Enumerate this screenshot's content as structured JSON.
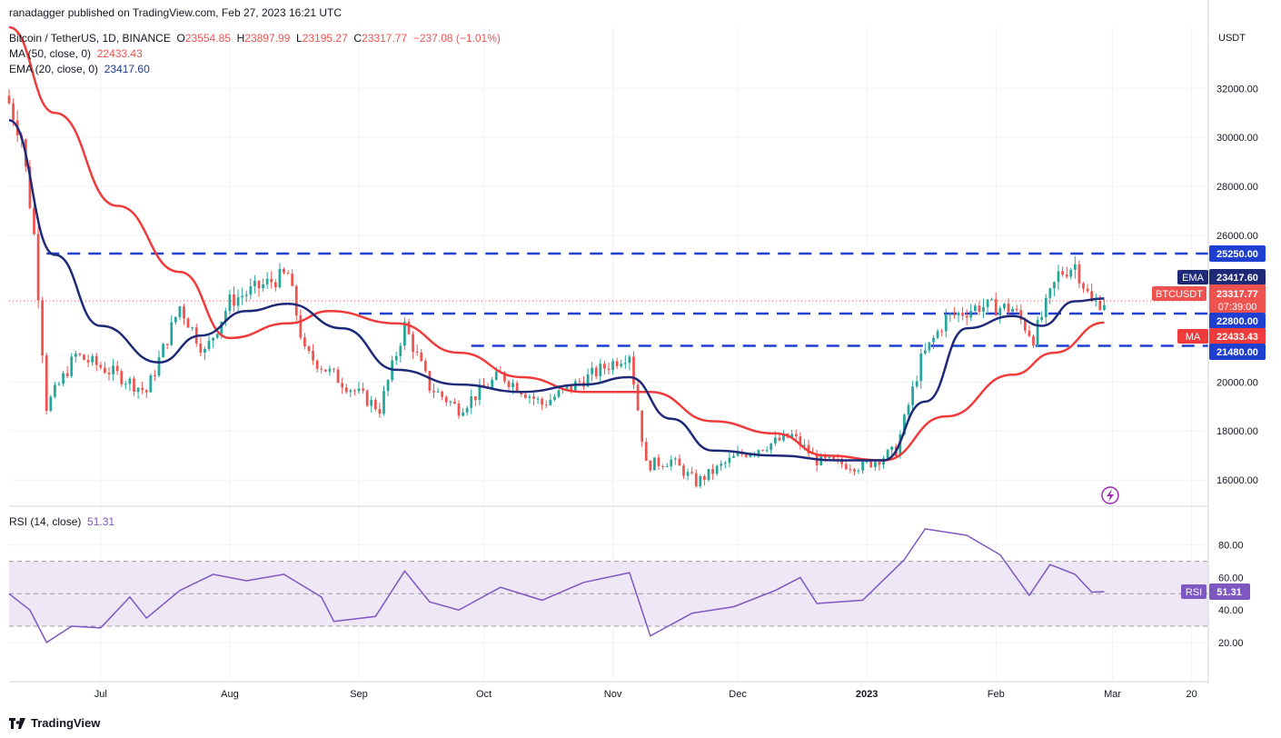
{
  "publisher_line": "ranadagger published on TradingView.com, Feb 27, 2023 16:21 UTC",
  "legend": {
    "symbol": "Bitcoin / TetherUS, 1D, BINANCE",
    "open_label": "O",
    "open": "23554.85",
    "high_label": "H",
    "high": "23897.99",
    "low_label": "L",
    "low": "23195.27",
    "close_label": "C",
    "close": "23317.77",
    "change": "−237.08 (−1.01%)",
    "ma_label": "MA (50, close, 0)",
    "ma_value": "22433.43",
    "ema_label": "EMA (20, close, 0)",
    "ema_value": "23417.60"
  },
  "rsi_legend": {
    "label": "RSI (14, close)",
    "value": "51.31"
  },
  "footer": {
    "brand": "TradingView"
  },
  "colors": {
    "up": "#26a69a",
    "down": "#ef5350",
    "ma": "#ef3b3b",
    "ema": "#1e2a78",
    "level": "#1f3fd1",
    "rsi": "#7e57c2",
    "rsi_band": "#ede7f6"
  },
  "price_axis": {
    "currency": "USDT",
    "ticks": [
      "32000.00",
      "30000.00",
      "28000.00",
      "26000.00",
      "20000.00",
      "18000.00",
      "16000.00"
    ]
  },
  "rsi_axis": {
    "ticks": [
      "80.00",
      "60.00",
      "40.00",
      "20.00"
    ]
  },
  "badges": {
    "level_25250": "25250.00",
    "ema_tag": "EMA",
    "ema_price": "23417.60",
    "symbol_tag": "BTCUSDT",
    "last_price": "23317.77",
    "countdown": "07:39:00",
    "level_22800": "22800.00",
    "ma_tag": "MA",
    "ma_price": "22433.43",
    "level_21480": "21480.00",
    "rsi_tag": "RSI",
    "rsi_value": "51.31"
  },
  "time_axis": [
    "Jul",
    "Aug",
    "Sep",
    "Oct",
    "Nov",
    "Dec",
    "2023",
    "Feb",
    "Mar",
    "20"
  ],
  "chart_data": {
    "type": "candlestick",
    "title": "Bitcoin / TetherUS, 1D, BINANCE",
    "ylabel": "USDT",
    "ylim": [
      15000,
      34500
    ],
    "x_range": [
      "2022-06-09",
      "2023-03-24"
    ],
    "levels": [
      25250,
      22800,
      21480
    ],
    "series": [
      {
        "name": "MA (50, close, 0)",
        "points": [
          [
            "2022-06-09",
            34500
          ],
          [
            "2022-06-20",
            31000
          ],
          [
            "2022-07-05",
            27200
          ],
          [
            "2022-07-20",
            24500
          ],
          [
            "2022-08-01",
            21800
          ],
          [
            "2022-08-15",
            22400
          ],
          [
            "2022-08-25",
            22900
          ],
          [
            "2022-09-10",
            22400
          ],
          [
            "2022-09-25",
            21200
          ],
          [
            "2022-10-10",
            20200
          ],
          [
            "2022-10-25",
            19600
          ],
          [
            "2022-11-10",
            19600
          ],
          [
            "2022-11-25",
            18400
          ],
          [
            "2022-12-10",
            17900
          ],
          [
            "2022-12-22",
            17000
          ],
          [
            "2023-01-05",
            16800
          ],
          [
            "2023-01-20",
            18600
          ],
          [
            "2023-02-05",
            20300
          ],
          [
            "2023-02-15",
            21200
          ],
          [
            "2023-02-27",
            22433
          ]
        ]
      },
      {
        "name": "EMA (20, close, 0)",
        "points": [
          [
            "2022-06-09",
            30700
          ],
          [
            "2022-06-20",
            25200
          ],
          [
            "2022-07-01",
            22300
          ],
          [
            "2022-07-15",
            20800
          ],
          [
            "2022-07-25",
            21900
          ],
          [
            "2022-08-05",
            22900
          ],
          [
            "2022-08-15",
            23200
          ],
          [
            "2022-08-28",
            22200
          ],
          [
            "2022-09-10",
            20500
          ],
          [
            "2022-09-25",
            19900
          ],
          [
            "2022-10-10",
            19600
          ],
          [
            "2022-10-25",
            19900
          ],
          [
            "2022-11-05",
            20200
          ],
          [
            "2022-11-15",
            18500
          ],
          [
            "2022-11-25",
            17200
          ],
          [
            "2022-12-10",
            17000
          ],
          [
            "2022-12-25",
            16800
          ],
          [
            "2023-01-05",
            16800
          ],
          [
            "2023-01-15",
            19200
          ],
          [
            "2023-01-25",
            22200
          ],
          [
            "2023-02-05",
            22700
          ],
          [
            "2023-02-12",
            22300
          ],
          [
            "2023-02-20",
            23300
          ],
          [
            "2023-02-27",
            23417
          ]
        ]
      },
      {
        "name": "RSI (14, close)",
        "points": [
          [
            "2022-06-09",
            50
          ],
          [
            "2022-06-14",
            40
          ],
          [
            "2022-06-18",
            20
          ],
          [
            "2022-06-24",
            30
          ],
          [
            "2022-07-01",
            29
          ],
          [
            "2022-07-08",
            48
          ],
          [
            "2022-07-12",
            35
          ],
          [
            "2022-07-20",
            52
          ],
          [
            "2022-07-28",
            62
          ],
          [
            "2022-08-05",
            58
          ],
          [
            "2022-08-14",
            62
          ],
          [
            "2022-08-23",
            48
          ],
          [
            "2022-08-26",
            33
          ],
          [
            "2022-09-05",
            36
          ],
          [
            "2022-09-12",
            64
          ],
          [
            "2022-09-18",
            45
          ],
          [
            "2022-09-25",
            40
          ],
          [
            "2022-10-05",
            54
          ],
          [
            "2022-10-15",
            46
          ],
          [
            "2022-10-25",
            57
          ],
          [
            "2022-11-05",
            63
          ],
          [
            "2022-11-10",
            24
          ],
          [
            "2022-11-20",
            38
          ],
          [
            "2022-11-30",
            42
          ],
          [
            "2022-12-10",
            52
          ],
          [
            "2022-12-16",
            60
          ],
          [
            "2022-12-20",
            44
          ],
          [
            "2022-12-31",
            46
          ],
          [
            "2023-01-10",
            71
          ],
          [
            "2023-01-15",
            90
          ],
          [
            "2023-01-25",
            86
          ],
          [
            "2023-02-02",
            74
          ],
          [
            "2023-02-09",
            49
          ],
          [
            "2023-02-14",
            68
          ],
          [
            "2023-02-20",
            62
          ],
          [
            "2023-02-24",
            51
          ],
          [
            "2023-02-27",
            51.31
          ]
        ]
      }
    ]
  }
}
